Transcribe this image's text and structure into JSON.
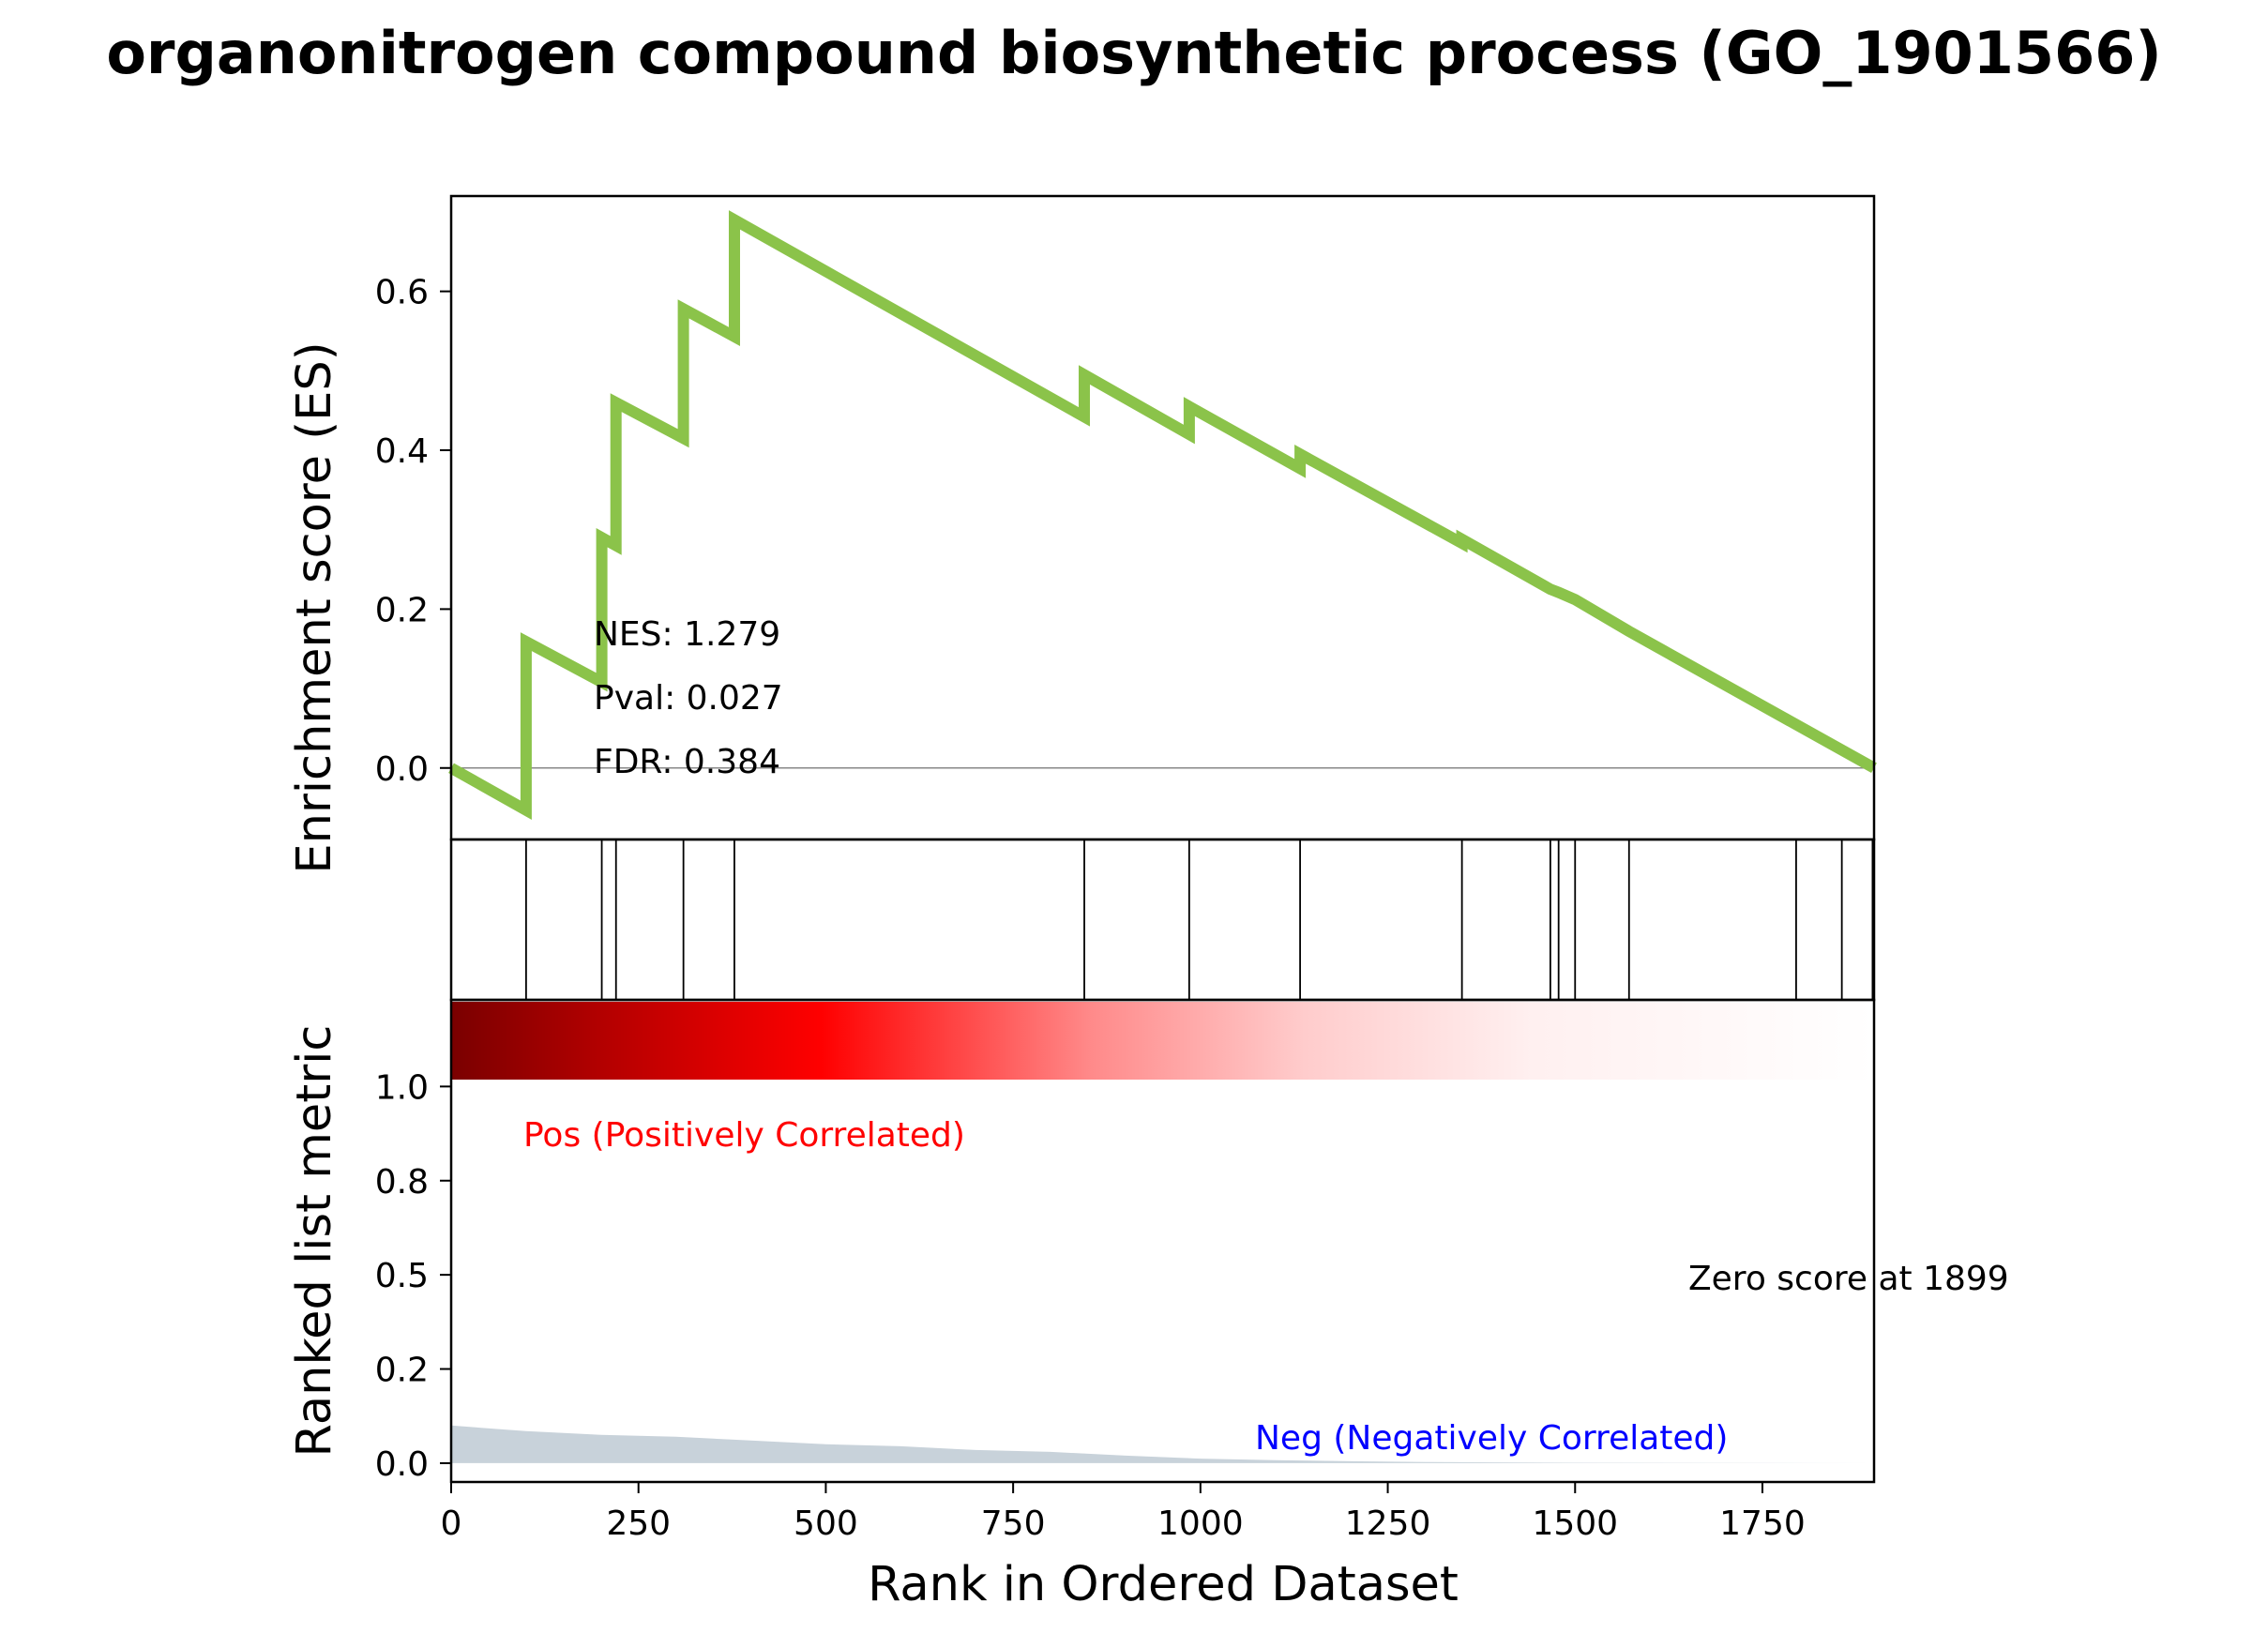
{
  "chart_data": {
    "type": "line",
    "title": "organonitrogen compound biosynthetic process (GO_1901566)",
    "xlabel": "Rank in Ordered Dataset",
    "xlim": [
      0,
      1899
    ],
    "x_ticks": [
      0,
      250,
      500,
      750,
      1000,
      1250,
      1500,
      1750
    ],
    "enrichment_panel": {
      "ylabel": "Enrichment score (ES)",
      "ylim": [
        -0.09,
        0.72
      ],
      "y_ticks": [
        0.0,
        0.2,
        0.4,
        0.6
      ],
      "y_tick_labels": [
        "0.0",
        "0.2",
        "0.4",
        "0.6"
      ],
      "line_color": "#8bc34a",
      "zero_line": true,
      "es_curve": [
        {
          "x": 0,
          "y": 0.0
        },
        {
          "x": 100,
          "y": -0.053
        },
        {
          "x": 100,
          "y": 0.159
        },
        {
          "x": 201,
          "y": 0.108
        },
        {
          "x": 201,
          "y": 0.29
        },
        {
          "x": 220,
          "y": 0.28
        },
        {
          "x": 220,
          "y": 0.46
        },
        {
          "x": 310,
          "y": 0.415
        },
        {
          "x": 310,
          "y": 0.578
        },
        {
          "x": 378,
          "y": 0.543
        },
        {
          "x": 378,
          "y": 0.69
        },
        {
          "x": 845,
          "y": 0.442
        },
        {
          "x": 845,
          "y": 0.495
        },
        {
          "x": 985,
          "y": 0.42
        },
        {
          "x": 985,
          "y": 0.455
        },
        {
          "x": 1133,
          "y": 0.377
        },
        {
          "x": 1133,
          "y": 0.395
        },
        {
          "x": 1349,
          "y": 0.283
        },
        {
          "x": 1349,
          "y": 0.288
        },
        {
          "x": 1467,
          "y": 0.225
        },
        {
          "x": 1478,
          "y": 0.221
        },
        {
          "x": 1500,
          "y": 0.212
        },
        {
          "x": 1572,
          "y": 0.172
        },
        {
          "x": 1899,
          "y": 0.0
        }
      ],
      "stats": {
        "nes": "NES: 1.279",
        "pval": "Pval: 0.027",
        "fdr": "FDR: 0.384"
      }
    },
    "hits_panel": {
      "hit_positions": [
        100,
        201,
        220,
        310,
        378,
        845,
        985,
        1133,
        1349,
        1467,
        1478,
        1500,
        1572,
        1795,
        1856,
        1897
      ]
    },
    "ranked_metric_panel": {
      "ylabel": "Ranked list metric",
      "ylim": [
        -0.05,
        1.23
      ],
      "y_ticks": [
        0.0,
        0.25,
        0.5,
        0.75,
        1.0
      ],
      "y_tick_labels": [
        "0.0",
        "0.2",
        "0.5",
        "0.8",
        "1.0"
      ],
      "fill_color": "#c8d2da",
      "metric_curve": [
        {
          "x": 0,
          "y": 0.1
        },
        {
          "x": 100,
          "y": 0.085
        },
        {
          "x": 200,
          "y": 0.075
        },
        {
          "x": 300,
          "y": 0.07
        },
        {
          "x": 400,
          "y": 0.06
        },
        {
          "x": 500,
          "y": 0.05
        },
        {
          "x": 600,
          "y": 0.045
        },
        {
          "x": 700,
          "y": 0.035
        },
        {
          "x": 800,
          "y": 0.03
        },
        {
          "x": 900,
          "y": 0.02
        },
        {
          "x": 1000,
          "y": 0.012
        },
        {
          "x": 1100,
          "y": 0.008
        },
        {
          "x": 1200,
          "y": 0.005
        },
        {
          "x": 1300,
          "y": 0.003
        },
        {
          "x": 1400,
          "y": 0.002
        },
        {
          "x": 1500,
          "y": 0.001
        },
        {
          "x": 1899,
          "y": 0.0
        }
      ],
      "pos_label": "Pos (Positively Correlated)",
      "neg_label": "Neg (Negatively Correlated)",
      "pos_color": "#ff0000",
      "neg_color": "#0000ff",
      "zero_score_label": "Zero score at 1899",
      "heatmap_colors": [
        "#800000",
        "#b30000",
        "#ff0000",
        "#ff6666",
        "#ffcccc",
        "#ffffff"
      ]
    }
  }
}
